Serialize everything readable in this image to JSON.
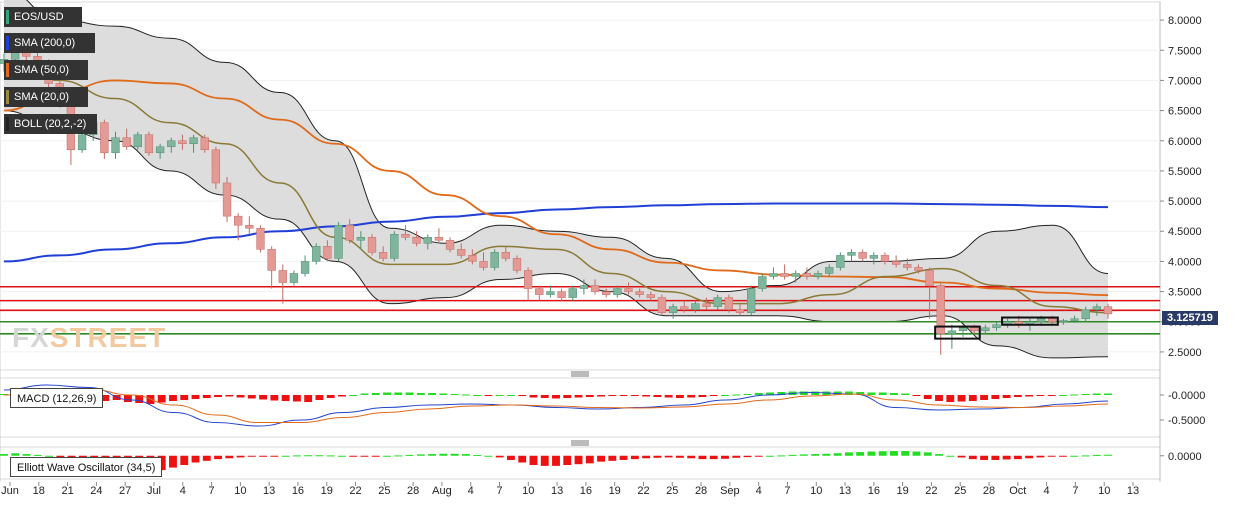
{
  "chart_data": {
    "type": "candlestick",
    "symbol": "EOS/USD",
    "x_ticks": [
      "Jun",
      "18",
      "21",
      "24",
      "27",
      "Jul",
      "4",
      "7",
      "10",
      "13",
      "16",
      "19",
      "22",
      "25",
      "28",
      "Aug",
      "4",
      "7",
      "10",
      "13",
      "16",
      "19",
      "22",
      "25",
      "28",
      "Sep",
      "4",
      "7",
      "10",
      "13",
      "16",
      "19",
      "22",
      "25",
      "28",
      "Oct",
      "4",
      "7",
      "10",
      "13"
    ],
    "price_axis": [
      "8.0000",
      "7.5000",
      "7.0000",
      "6.5000",
      "6.0000",
      "5.5000",
      "5.0000",
      "4.5000",
      "4.0000",
      "3.5000",
      "3.0000",
      "2.5000"
    ],
    "ylim": [
      2.2,
      8.3
    ],
    "current_price": "3.125719",
    "legend": [
      "EOS/USD",
      "SMA (200,0)",
      "SMA (50,0)",
      "SMA (20,0)",
      "BOLL (20,2,-2)"
    ],
    "legend_colors": [
      "#2fa77a",
      "#1f3fd6",
      "#e06a1a",
      "#9a8a40",
      "#222222"
    ],
    "horizontal_lines": [
      {
        "price": 3.58,
        "color": "#dd1111"
      },
      {
        "price": 3.35,
        "color": "#dd1111"
      },
      {
        "price": 3.19,
        "color": "#dd1111"
      },
      {
        "price": 3.0,
        "color": "#2e8b22"
      },
      {
        "price": 2.8,
        "color": "#2e8b22"
      }
    ],
    "candles": [
      [
        7.28,
        7.45,
        7.15,
        7.35
      ],
      [
        7.35,
        7.65,
        7.3,
        7.55
      ],
      [
        7.55,
        7.62,
        7.3,
        7.4
      ],
      [
        7.4,
        7.55,
        7.2,
        7.25
      ],
      [
        7.25,
        7.35,
        6.8,
        6.95
      ],
      [
        6.95,
        7.05,
        6.55,
        6.6
      ],
      [
        6.6,
        6.65,
        5.6,
        5.85
      ],
      [
        5.85,
        6.3,
        5.8,
        6.1
      ],
      [
        6.1,
        6.4,
        6.0,
        6.3
      ],
      [
        6.3,
        6.35,
        5.7,
        5.8
      ],
      [
        5.8,
        6.15,
        5.7,
        6.05
      ],
      [
        6.05,
        6.2,
        5.85,
        5.9
      ],
      [
        5.9,
        6.15,
        5.85,
        6.1
      ],
      [
        6.1,
        6.15,
        5.75,
        5.8
      ],
      [
        5.8,
        5.95,
        5.7,
        5.9
      ],
      [
        5.9,
        6.05,
        5.8,
        6.0
      ],
      [
        6.0,
        6.1,
        5.85,
        5.95
      ],
      [
        5.95,
        6.1,
        5.8,
        6.05
      ],
      [
        6.05,
        6.1,
        5.8,
        5.85
      ],
      [
        5.85,
        5.9,
        5.2,
        5.3
      ],
      [
        5.3,
        5.4,
        4.65,
        4.75
      ],
      [
        4.75,
        4.8,
        4.35,
        4.6
      ],
      [
        4.6,
        4.75,
        4.45,
        4.55
      ],
      [
        4.55,
        4.6,
        4.15,
        4.2
      ],
      [
        4.2,
        4.25,
        3.55,
        3.85
      ],
      [
        3.85,
        3.95,
        3.3,
        3.65
      ],
      [
        3.65,
        3.85,
        3.6,
        3.8
      ],
      [
        3.8,
        4.1,
        3.75,
        4.0
      ],
      [
        4.0,
        4.3,
        3.95,
        4.25
      ],
      [
        4.25,
        4.35,
        4.0,
        4.05
      ],
      [
        4.05,
        4.65,
        4.0,
        4.6
      ],
      [
        4.6,
        4.7,
        4.3,
        4.35
      ],
      [
        4.35,
        4.5,
        4.2,
        4.4
      ],
      [
        4.4,
        4.45,
        4.1,
        4.15
      ],
      [
        4.15,
        4.25,
        4.0,
        4.05
      ],
      [
        4.05,
        4.5,
        4.0,
        4.45
      ],
      [
        4.45,
        4.6,
        4.35,
        4.4
      ],
      [
        4.4,
        4.5,
        4.25,
        4.3
      ],
      [
        4.3,
        4.45,
        4.2,
        4.4
      ],
      [
        4.4,
        4.55,
        4.3,
        4.35
      ],
      [
        4.35,
        4.4,
        4.15,
        4.2
      ],
      [
        4.2,
        4.3,
        4.05,
        4.1
      ],
      [
        4.1,
        4.2,
        3.95,
        4.0
      ],
      [
        4.0,
        4.15,
        3.85,
        3.9
      ],
      [
        3.9,
        4.2,
        3.85,
        4.15
      ],
      [
        4.15,
        4.25,
        4.0,
        4.05
      ],
      [
        4.05,
        4.1,
        3.8,
        3.85
      ],
      [
        3.85,
        3.9,
        3.35,
        3.55
      ],
      [
        3.55,
        3.6,
        3.35,
        3.45
      ],
      [
        3.45,
        3.6,
        3.4,
        3.5
      ],
      [
        3.5,
        3.55,
        3.35,
        3.4
      ],
      [
        3.4,
        3.6,
        3.35,
        3.55
      ],
      [
        3.55,
        3.7,
        3.45,
        3.6
      ],
      [
        3.6,
        3.7,
        3.45,
        3.5
      ],
      [
        3.5,
        3.55,
        3.4,
        3.45
      ],
      [
        3.45,
        3.6,
        3.4,
        3.55
      ],
      [
        3.55,
        3.65,
        3.45,
        3.5
      ],
      [
        3.5,
        3.55,
        3.4,
        3.45
      ],
      [
        3.45,
        3.5,
        3.35,
        3.4
      ],
      [
        3.4,
        3.45,
        3.1,
        3.15
      ],
      [
        3.15,
        3.3,
        3.05,
        3.25
      ],
      [
        3.25,
        3.35,
        3.15,
        3.2
      ],
      [
        3.2,
        3.35,
        3.15,
        3.3
      ],
      [
        3.3,
        3.4,
        3.2,
        3.25
      ],
      [
        3.25,
        3.45,
        3.2,
        3.4
      ],
      [
        3.4,
        3.45,
        3.15,
        3.2
      ],
      [
        3.2,
        3.3,
        3.1,
        3.15
      ],
      [
        3.15,
        3.6,
        3.1,
        3.55
      ],
      [
        3.55,
        3.8,
        3.5,
        3.75
      ],
      [
        3.75,
        3.9,
        3.7,
        3.8
      ],
      [
        3.8,
        3.95,
        3.7,
        3.75
      ],
      [
        3.75,
        3.85,
        3.65,
        3.8
      ],
      [
        3.8,
        3.9,
        3.7,
        3.75
      ],
      [
        3.75,
        3.85,
        3.7,
        3.8
      ],
      [
        3.8,
        3.95,
        3.75,
        3.9
      ],
      [
        3.9,
        4.15,
        3.85,
        4.1
      ],
      [
        4.1,
        4.2,
        4.0,
        4.15
      ],
      [
        4.15,
        4.2,
        4.0,
        4.05
      ],
      [
        4.05,
        4.15,
        3.95,
        4.1
      ],
      [
        4.1,
        4.15,
        3.95,
        4.0
      ],
      [
        4.0,
        4.1,
        3.9,
        3.95
      ],
      [
        3.95,
        4.05,
        3.85,
        3.9
      ],
      [
        3.9,
        3.95,
        3.8,
        3.85
      ],
      [
        3.85,
        3.9,
        3.05,
        3.6
      ],
      [
        3.6,
        3.65,
        2.45,
        2.8
      ],
      [
        2.8,
        2.95,
        2.55,
        2.85
      ],
      [
        2.85,
        2.95,
        2.75,
        2.9
      ],
      [
        2.9,
        2.95,
        2.8,
        2.85
      ],
      [
        2.85,
        2.95,
        2.8,
        2.9
      ],
      [
        2.9,
        3.0,
        2.85,
        2.95
      ],
      [
        2.95,
        3.05,
        2.9,
        3.0
      ],
      [
        3.0,
        3.1,
        2.9,
        2.95
      ],
      [
        2.95,
        3.05,
        2.85,
        3.0
      ],
      [
        3.0,
        3.1,
        2.95,
        3.05
      ],
      [
        3.05,
        3.1,
        2.95,
        3.0
      ],
      [
        3.0,
        3.05,
        2.95,
        3.02
      ],
      [
        3.02,
        3.1,
        2.98,
        3.05
      ],
      [
        3.05,
        3.25,
        3.0,
        3.2
      ],
      [
        3.2,
        3.3,
        3.1,
        3.25
      ],
      [
        3.25,
        3.3,
        3.05,
        3.13
      ]
    ],
    "sma200": [
      4.0,
      4.1,
      4.2,
      4.3,
      4.4,
      4.5,
      4.58,
      4.66,
      4.74,
      4.8,
      4.86,
      4.9,
      4.93,
      4.95,
      4.96,
      4.96,
      4.96,
      4.95,
      4.94,
      4.92,
      4.9
    ],
    "sma50": [
      6.5,
      6.8,
      7.0,
      6.95,
      6.7,
      6.35,
      5.95,
      5.5,
      5.1,
      4.75,
      4.45,
      4.2,
      3.98,
      3.85,
      3.78,
      3.75,
      3.74,
      3.65,
      3.55,
      3.48,
      3.44
    ],
    "sma20": [
      7.3,
      7.0,
      6.7,
      6.3,
      5.95,
      5.3,
      4.4,
      3.95,
      3.95,
      4.25,
      4.2,
      3.8,
      3.5,
      3.3,
      3.3,
      3.45,
      3.75,
      3.88,
      3.6,
      3.25,
      3.15
    ],
    "boll_upper": [
      8.5,
      8.0,
      7.9,
      7.7,
      7.3,
      6.8,
      6.0,
      4.55,
      4.3,
      4.6,
      4.5,
      4.4,
      4.05,
      3.5,
      3.6,
      4.0,
      4.0,
      4.05,
      4.5,
      4.6,
      3.8
    ],
    "boll_lower": [
      6.5,
      6.2,
      6.0,
      5.5,
      5.1,
      4.7,
      4.0,
      3.3,
      3.4,
      3.7,
      3.8,
      3.5,
      3.1,
      3.1,
      3.1,
      3.0,
      3.0,
      3.1,
      2.6,
      2.4,
      2.42
    ],
    "boxes": [
      [
        83.5,
        87.5,
        2.72,
        2.92
      ],
      [
        89.5,
        94.5,
        2.95,
        3.07
      ]
    ],
    "macd": {
      "label": "MACD (12,26,9)",
      "axis": [
        "-0.0000",
        "-0.5000"
      ],
      "ylim": [
        -0.8,
        0.3
      ],
      "hist": [
        0.02,
        0.03,
        0.02,
        0.0,
        -0.05,
        -0.08,
        -0.1,
        -0.12,
        -0.13,
        -0.12,
        -0.1,
        -0.14,
        -0.16,
        -0.18,
        -0.15,
        -0.12,
        -0.1,
        -0.08,
        -0.06,
        -0.04,
        -0.03,
        -0.05,
        -0.07,
        -0.09,
        -0.11,
        -0.12,
        -0.13,
        -0.14,
        -0.1,
        -0.06,
        -0.03,
        0.0,
        0.03,
        0.04,
        0.05,
        0.05,
        0.05,
        0.04,
        0.04,
        0.03,
        0.02,
        0.01,
        0.0,
        -0.01,
        0.0,
        0.0,
        -0.01,
        -0.05,
        -0.06,
        -0.07,
        -0.06,
        -0.05,
        -0.04,
        -0.03,
        -0.02,
        -0.02,
        -0.02,
        -0.03,
        -0.04,
        -0.05,
        -0.06,
        -0.05,
        -0.04,
        -0.02,
        0.0,
        0.01,
        0.02,
        0.04,
        0.05,
        0.06,
        0.07,
        0.07,
        0.07,
        0.07,
        0.07,
        0.07,
        0.06,
        0.05,
        0.05,
        0.04,
        0.03,
        -0.02,
        -0.08,
        -0.12,
        -0.14,
        -0.13,
        -0.12,
        -0.1,
        -0.08,
        -0.06,
        -0.04,
        -0.03,
        -0.02,
        -0.01,
        0.0,
        0.01,
        0.02,
        0.03,
        0.03
      ],
      "macd_line": [
        0.1,
        0.2,
        0.15,
        -0.1,
        -0.35,
        -0.55,
        -0.62,
        -0.5,
        -0.35,
        -0.25,
        -0.2,
        -0.18,
        -0.2,
        -0.25,
        -0.28,
        -0.25,
        -0.2,
        -0.1,
        0.0,
        0.05,
        0.02,
        -0.25,
        -0.3,
        -0.28,
        -0.25,
        -0.18,
        -0.12
      ],
      "signal_line": [
        0.0,
        0.1,
        0.12,
        0.0,
        -0.2,
        -0.4,
        -0.55,
        -0.55,
        -0.45,
        -0.35,
        -0.28,
        -0.22,
        -0.2,
        -0.22,
        -0.25,
        -0.26,
        -0.24,
        -0.18,
        -0.1,
        -0.02,
        0.02,
        -0.1,
        -0.2,
        -0.24,
        -0.25,
        -0.22,
        -0.18
      ]
    },
    "ewo": {
      "label": "Elliott Wave Oscillator (34,5)",
      "axis": [
        "0.0000"
      ],
      "ylim": [
        -1.2,
        0.4
      ],
      "hist": [
        0.1,
        0.15,
        0.1,
        0.05,
        0.0,
        -0.1,
        -0.3,
        -0.5,
        -0.7,
        -0.85,
        -0.95,
        -1.0,
        -1.0,
        -0.95,
        -0.85,
        -0.7,
        -0.55,
        -0.4,
        -0.3,
        -0.2,
        -0.15,
        -0.1,
        -0.05,
        -0.05,
        -0.02,
        0.0,
        0.02,
        0.03,
        0.03,
        0.02,
        0.0,
        -0.02,
        -0.03,
        -0.02,
        0.0,
        0.02,
        0.05,
        0.08,
        0.1,
        0.12,
        0.12,
        0.1,
        0.05,
        0.0,
        -0.1,
        -0.25,
        -0.4,
        -0.55,
        -0.6,
        -0.6,
        -0.55,
        -0.5,
        -0.45,
        -0.35,
        -0.3,
        -0.25,
        -0.2,
        -0.15,
        -0.12,
        -0.1,
        -0.12,
        -0.15,
        -0.2,
        -0.2,
        -0.18,
        -0.12,
        -0.08,
        -0.03,
        0.0,
        0.02,
        0.05,
        0.08,
        0.1,
        0.12,
        0.15,
        0.2,
        0.22,
        0.25,
        0.27,
        0.28,
        0.28,
        0.25,
        0.2,
        0.1,
        0.0,
        -0.1,
        -0.2,
        -0.25,
        -0.25,
        -0.22,
        -0.2,
        -0.15,
        -0.1,
        -0.05,
        -0.02,
        0.0,
        0.02,
        0.05,
        0.06
      ]
    }
  }
}
